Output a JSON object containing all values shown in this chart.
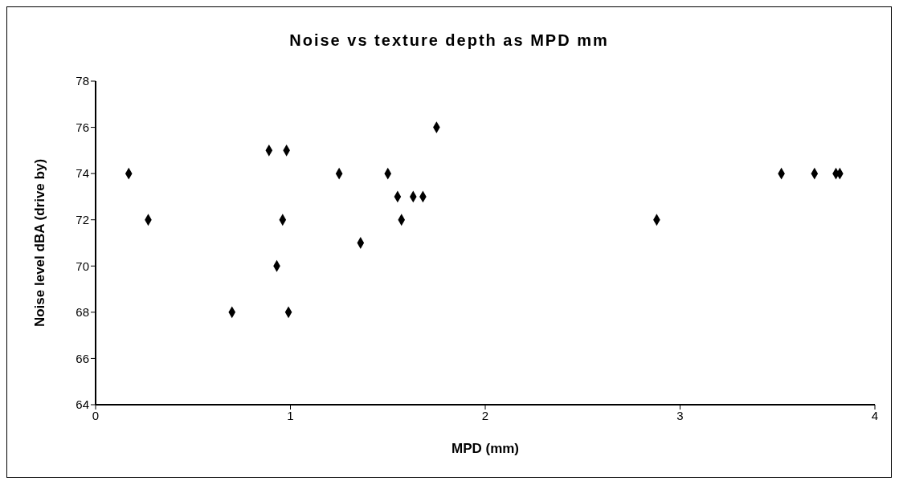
{
  "chart_data": {
    "type": "scatter",
    "title": "Noise vs texture depth as MPD mm",
    "xlabel": "MPD (mm)",
    "ylabel": "Noise level dBA (drive by)",
    "x": [
      0.17,
      0.27,
      0.7,
      0.89,
      0.98,
      0.93,
      0.96,
      0.99,
      1.25,
      1.36,
      1.5,
      1.55,
      1.57,
      1.63,
      1.68,
      1.75,
      2.88,
      3.52,
      3.69,
      3.8,
      3.82
    ],
    "values": [
      74,
      72,
      68,
      75,
      75,
      70,
      72,
      68,
      74,
      71,
      74,
      73,
      72,
      73,
      73,
      76,
      72,
      74,
      74,
      74,
      74
    ],
    "color": "#000000",
    "marker": "diamond",
    "xlim": [
      0,
      4
    ],
    "xticks": [
      0,
      1,
      2,
      3,
      4
    ],
    "ylim": [
      64,
      78
    ],
    "yticks": [
      64,
      66,
      68,
      70,
      72,
      74,
      76,
      78
    ],
    "grid": false,
    "legend": false
  }
}
